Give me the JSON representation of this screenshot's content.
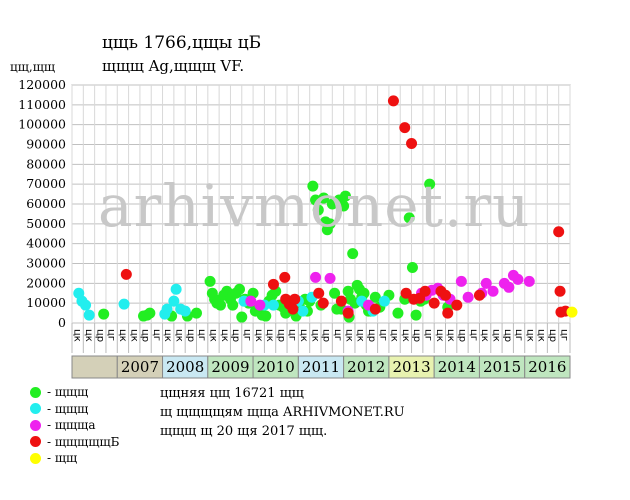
{
  "title_line1": "цщь 1766,цщы цБ",
  "title_line2": "щщщ Ag,щщщ VF.",
  "y_unit": "цщ,щщ",
  "watermark": "arhivmonet.ru",
  "legend": [
    {
      "label": "- щщщ",
      "color": "#22ee22"
    },
    {
      "label": "- щщщ",
      "color": "#22eeee"
    },
    {
      "label": "- щщща",
      "color": "#ee22ee"
    },
    {
      "label": "- щщщщщБ",
      "color": "#ee1111"
    },
    {
      "label": "- щщ",
      "color": "#ffff00"
    }
  ],
  "info_lines": [
    "цщняя цщ 16721 щщ",
    "щ щщщщям щща ARHIVMONET.RU",
    "щщщ щ 20 щя 2017 щщ."
  ],
  "chart_data": {
    "type": "scatter",
    "ylim": [
      0,
      120000
    ],
    "yticks": [
      0,
      10000,
      20000,
      30000,
      40000,
      50000,
      60000,
      70000,
      80000,
      90000,
      100000,
      110000,
      120000
    ],
    "x_range": [
      2006.0,
      2017.0
    ],
    "quarter_labels": [
      "цк",
      "цк",
      "цр",
      "цг",
      "цк",
      "цк",
      "цр",
      "цг",
      "цк",
      "цк",
      "цр",
      "цг",
      "цк",
      "цк",
      "цр",
      "цг",
      "цк",
      "цк",
      "цр",
      "цг",
      "цк",
      "цк",
      "цр",
      "цг",
      "цк",
      "цк",
      "цр",
      "цг",
      "цк",
      "цк",
      "цр",
      "цг",
      "цк",
      "цк",
      "цр",
      "цг",
      "цк",
      "цк",
      "цр",
      "цг",
      "цк",
      "цк",
      "цр",
      "цг"
    ],
    "years": [
      {
        "label": "2007",
        "start": 2007,
        "color": "#d4d0b8"
      },
      {
        "label": "2008",
        "start": 2008,
        "color": "#c9e8f2"
      },
      {
        "label": "2009",
        "start": 2009,
        "color": "#bfe6bf"
      },
      {
        "label": "2010",
        "start": 2010,
        "color": "#bfe6bf"
      },
      {
        "label": "2011",
        "start": 2011,
        "color": "#c9e8f2"
      },
      {
        "label": "2012",
        "start": 2012,
        "color": "#bfe6bf"
      },
      {
        "label": "2013",
        "start": 2013,
        "color": "#e8f2b0"
      },
      {
        "label": "2014",
        "start": 2014,
        "color": "#bfe6bf"
      },
      {
        "label": "2015",
        "start": 2015,
        "color": "#bfe6bf"
      },
      {
        "label": "2016",
        "start": 2016,
        "color": "#bfe6bf"
      }
    ],
    "series": [
      {
        "color": "#22ee22",
        "points": [
          [
            2006.7,
            4500
          ],
          [
            2007.58,
            3500
          ],
          [
            2007.66,
            4000
          ],
          [
            2007.72,
            5000
          ],
          [
            2008.2,
            3500
          ],
          [
            2008.55,
            3500
          ],
          [
            2008.75,
            5000
          ],
          [
            2009.05,
            21000
          ],
          [
            2009.1,
            15000
          ],
          [
            2009.15,
            12000
          ],
          [
            2009.2,
            10000
          ],
          [
            2009.28,
            9000
          ],
          [
            2009.35,
            14000
          ],
          [
            2009.42,
            16000
          ],
          [
            2009.5,
            12000
          ],
          [
            2009.55,
            9000
          ],
          [
            2009.62,
            15000
          ],
          [
            2009.7,
            17000
          ],
          [
            2009.75,
            3000
          ],
          [
            2009.82,
            12000
          ],
          [
            2009.9,
            10000
          ],
          [
            2010.0,
            15000
          ],
          [
            2010.1,
            7000
          ],
          [
            2010.2,
            4000
          ],
          [
            2010.28,
            3500
          ],
          [
            2010.35,
            11000
          ],
          [
            2010.42,
            14000
          ],
          [
            2010.5,
            16000
          ],
          [
            2010.58,
            9000
          ],
          [
            2010.66,
            8000
          ],
          [
            2010.72,
            5000
          ],
          [
            2010.8,
            10000
          ],
          [
            2010.9,
            6000
          ],
          [
            2010.95,
            3500
          ],
          [
            2011.05,
            7000
          ],
          [
            2011.15,
            12000
          ],
          [
            2011.25,
            11000
          ],
          [
            2011.32,
            69000
          ],
          [
            2011.38,
            62000
          ],
          [
            2011.44,
            57000
          ],
          [
            2011.5,
            9000
          ],
          [
            2011.56,
            63000
          ],
          [
            2011.6,
            51000
          ],
          [
            2011.64,
            47000
          ],
          [
            2011.7,
            50000
          ],
          [
            2011.75,
            60000
          ],
          [
            2011.8,
            15000
          ],
          [
            2011.85,
            7000
          ],
          [
            2011.9,
            62000
          ],
          [
            2011.95,
            7000
          ],
          [
            2012.0,
            59000
          ],
          [
            2012.04,
            64000
          ],
          [
            2012.1,
            16000
          ],
          [
            2012.15,
            12000
          ],
          [
            2012.2,
            35000
          ],
          [
            2012.25,
            10000
          ],
          [
            2012.3,
            19000
          ],
          [
            2012.35,
            17000
          ],
          [
            2012.4,
            13000
          ],
          [
            2012.45,
            15000
          ],
          [
            2012.5,
            9000
          ],
          [
            2012.55,
            6000
          ],
          [
            2012.6,
            6000
          ],
          [
            2012.7,
            13000
          ],
          [
            2012.8,
            8000
          ],
          [
            2013.0,
            14000
          ],
          [
            2013.2,
            5000
          ],
          [
            2013.35,
            12000
          ],
          [
            2013.45,
            53000
          ],
          [
            2013.52,
            28000
          ],
          [
            2013.6,
            4000
          ],
          [
            2013.7,
            11000
          ],
          [
            2013.78,
            12000
          ],
          [
            2013.9,
            70000
          ],
          [
            2014.3,
            8000
          ],
          [
            2011.2,
            6000
          ],
          [
            2010.05,
            6000
          ],
          [
            2012.12,
            3000
          ]
        ]
      },
      {
        "color": "#22eeee",
        "points": [
          [
            2006.15,
            15000
          ],
          [
            2006.22,
            11000
          ],
          [
            2006.3,
            9000
          ],
          [
            2006.38,
            4000
          ],
          [
            2007.15,
            9500
          ],
          [
            2008.05,
            4500
          ],
          [
            2008.1,
            7000
          ],
          [
            2008.25,
            11000
          ],
          [
            2008.3,
            17000
          ],
          [
            2008.4,
            7000
          ],
          [
            2008.5,
            6000
          ],
          [
            2009.8,
            11000
          ],
          [
            2010.25,
            9000
          ],
          [
            2010.45,
            9000
          ],
          [
            2011.0,
            11000
          ],
          [
            2011.1,
            6000
          ],
          [
            2011.3,
            13000
          ],
          [
            2012.4,
            11000
          ],
          [
            2012.65,
            6000
          ],
          [
            2012.9,
            11000
          ]
        ]
      },
      {
        "color": "#ee22ee",
        "points": [
          [
            2009.95,
            11000
          ],
          [
            2010.15,
            9000
          ],
          [
            2010.85,
            11000
          ],
          [
            2011.38,
            23000
          ],
          [
            2011.7,
            22500
          ],
          [
            2012.1,
            6000
          ],
          [
            2012.55,
            9000
          ],
          [
            2013.72,
            15000
          ],
          [
            2013.82,
            14000
          ],
          [
            2013.95,
            16500
          ],
          [
            2014.08,
            17500
          ],
          [
            2014.2,
            14000
          ],
          [
            2014.35,
            12000
          ],
          [
            2014.6,
            21000
          ],
          [
            2015.15,
            20000
          ],
          [
            2015.3,
            16000
          ],
          [
            2015.55,
            20000
          ],
          [
            2015.65,
            18000
          ],
          [
            2015.75,
            24000
          ],
          [
            2015.85,
            22000
          ],
          [
            2016.1,
            21000
          ],
          [
            2014.75,
            13000
          ],
          [
            2015.05,
            15000
          ]
        ]
      },
      {
        "color": "#ee1111",
        "points": [
          [
            2007.2,
            24500
          ],
          [
            2010.45,
            19500
          ],
          [
            2010.7,
            23000
          ],
          [
            2010.72,
            12000
          ],
          [
            2010.8,
            9500
          ],
          [
            2010.88,
            7000
          ],
          [
            2010.92,
            12000
          ],
          [
            2011.45,
            15000
          ],
          [
            2011.55,
            10000
          ],
          [
            2011.95,
            11000
          ],
          [
            2012.1,
            5000
          ],
          [
            2012.7,
            7000
          ],
          [
            2013.1,
            112000
          ],
          [
            2013.35,
            98500
          ],
          [
            2013.5,
            90500
          ],
          [
            2013.38,
            15000
          ],
          [
            2013.55,
            12000
          ],
          [
            2013.68,
            12500
          ],
          [
            2013.8,
            16000
          ],
          [
            2014.0,
            10000
          ],
          [
            2014.15,
            16000
          ],
          [
            2014.3,
            5000
          ],
          [
            2014.5,
            9000
          ],
          [
            2015.0,
            14000
          ],
          [
            2016.75,
            46000
          ],
          [
            2016.78,
            16000
          ],
          [
            2016.8,
            5500
          ],
          [
            2016.9,
            6000
          ],
          [
            2014.25,
            14000
          ]
        ]
      },
      {
        "color": "#ffff00",
        "points": [
          [
            2017.05,
            5500
          ]
        ]
      }
    ]
  }
}
